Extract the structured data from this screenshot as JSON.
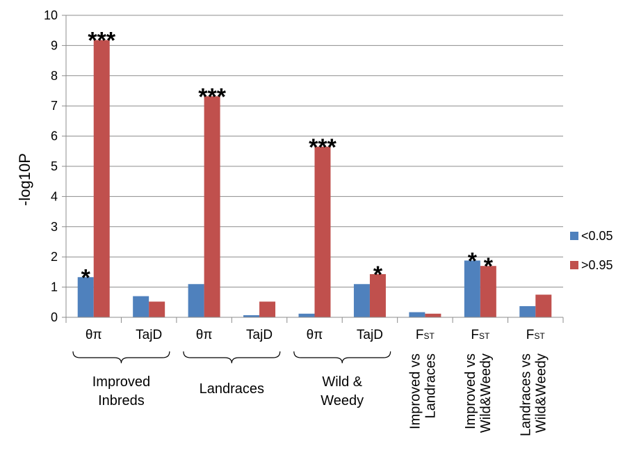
{
  "chart_data": {
    "type": "bar",
    "ylabel": "-log10P",
    "ylim": [
      0,
      10
    ],
    "yticks": [
      "0",
      "1",
      "2",
      "3",
      "4",
      "5",
      "6",
      "7",
      "8",
      "9",
      "10"
    ],
    "categories": [
      {
        "label": "θπ",
        "label_sub": ""
      },
      {
        "label": "TajD",
        "label_sub": ""
      },
      {
        "label": "θπ",
        "label_sub": ""
      },
      {
        "label": "TajD",
        "label_sub": ""
      },
      {
        "label": "θπ",
        "label_sub": ""
      },
      {
        "label": "TajD",
        "label_sub": ""
      },
      {
        "label": "F",
        "label_sub": "ST"
      },
      {
        "label": "F",
        "label_sub": "ST"
      },
      {
        "label": "F",
        "label_sub": "ST"
      }
    ],
    "series": [
      {
        "name": "<0.05",
        "color": "#4F81BD",
        "values": [
          1.33,
          0.7,
          1.1,
          0.07,
          0.12,
          1.1,
          0.17,
          1.88,
          0.37
        ]
      },
      {
        "name": ">0.95",
        "color": "#C0504D",
        "values": [
          9.18,
          0.52,
          7.32,
          0.52,
          5.65,
          1.43,
          0.12,
          1.7,
          0.75
        ]
      }
    ],
    "annotations": [
      {
        "category": 0,
        "series": 0,
        "text": "*"
      },
      {
        "category": 0,
        "series": 1,
        "text": "***"
      },
      {
        "category": 2,
        "series": 1,
        "text": "***"
      },
      {
        "category": 4,
        "series": 1,
        "text": "***"
      },
      {
        "category": 5,
        "series": 1,
        "text": "*"
      },
      {
        "category": 7,
        "series": 0,
        "text": "*"
      },
      {
        "category": 7,
        "series": 1,
        "text": "*"
      }
    ],
    "groups": [
      {
        "lines": [
          "Improved",
          "Inbreds"
        ],
        "categories": [
          0,
          1
        ]
      },
      {
        "lines": [
          "Landraces"
        ],
        "categories": [
          2,
          3
        ]
      },
      {
        "lines": [
          "Wild &",
          "Weedy"
        ],
        "categories": [
          4,
          5
        ]
      }
    ],
    "rotated_labels": [
      {
        "category": 6,
        "lines": [
          "Improved vs",
          "Landraces"
        ]
      },
      {
        "category": 7,
        "lines": [
          "Improved vs",
          "Wild&Weedy"
        ]
      },
      {
        "category": 8,
        "lines": [
          "Landraces vs",
          "Wild&Weedy"
        ]
      }
    ],
    "grid": true,
    "legend_position": "right"
  }
}
